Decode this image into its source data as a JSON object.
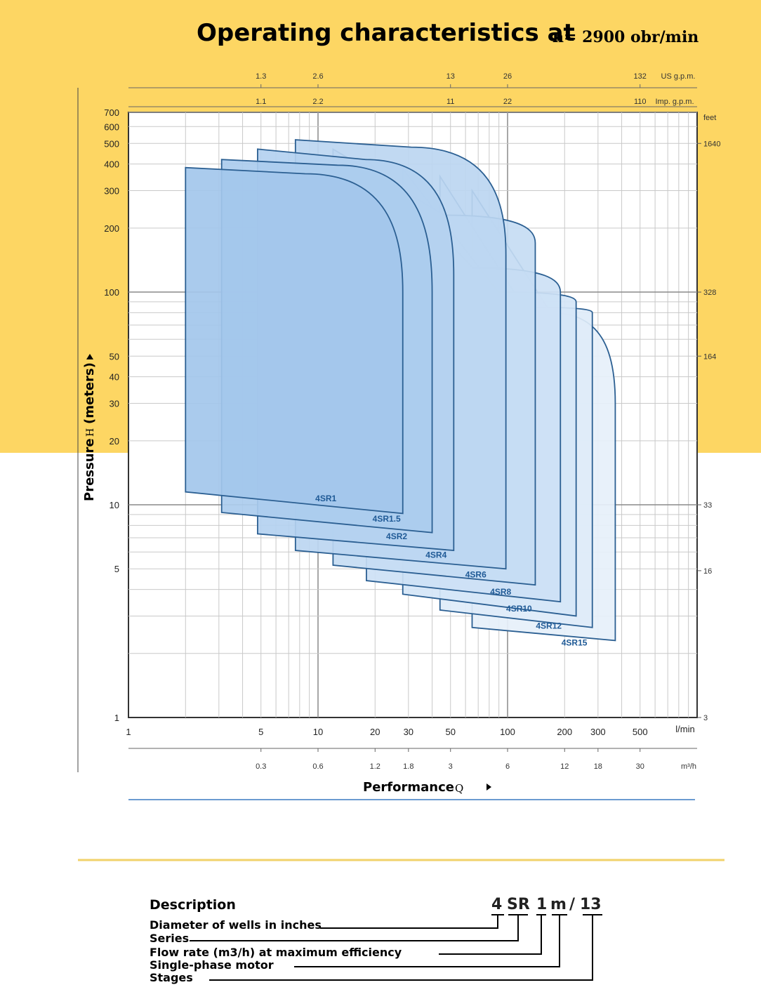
{
  "header": {
    "title": "Operating characteristics at",
    "speed": "n= 2900 obr/min"
  },
  "colors": {
    "background_band": "#fdd663",
    "curve_stroke": "#2b5f92",
    "fill_front": "#a3c7ec",
    "fill_back": "#e6f0fa",
    "label_text": "#1f5a96",
    "bottom_rule": "#6b9bd1",
    "separator_rule": "#f1d26a"
  },
  "chart_data": {
    "type": "area",
    "xscale": "log",
    "yscale": "log",
    "grid": true,
    "xlim": [
      1,
      1000
    ],
    "ylim": [
      1,
      700
    ],
    "xlabel": "Performance",
    "xsymbol": "Q",
    "ylabel": "Pressure",
    "ysymbol": "H",
    "yunit": "(meters)",
    "x_unit": "l/min",
    "x_ticks": [
      "1",
      "5",
      "10",
      "20",
      "30",
      "50",
      "100",
      "200",
      "300",
      "500"
    ],
    "y_ticks": [
      "1",
      "5",
      "10",
      "20",
      "30",
      "40",
      "50",
      "100",
      "200",
      "300",
      "400",
      "500",
      "600",
      "700"
    ],
    "secondary_x_axes": [
      {
        "unit": "m³/h",
        "ticks": [
          {
            "x": 5,
            "label": "0.3"
          },
          {
            "x": 10,
            "label": "0.6"
          },
          {
            "x": 20,
            "label": "1.2"
          },
          {
            "x": 30,
            "label": "1.8"
          },
          {
            "x": 50,
            "label": "3"
          },
          {
            "x": 100,
            "label": "6"
          },
          {
            "x": 200,
            "label": "12"
          },
          {
            "x": 300,
            "label": "18"
          },
          {
            "x": 500,
            "label": "30"
          }
        ]
      },
      {
        "unit": "Imp. g.p.m.",
        "ticks": [
          {
            "x": 5,
            "label": "1.1"
          },
          {
            "x": 10,
            "label": "2.2"
          },
          {
            "x": 50,
            "label": "11"
          },
          {
            "x": 100,
            "label": "22"
          },
          {
            "x": 500,
            "label": "110"
          }
        ]
      },
      {
        "unit": "US g.p.m.",
        "ticks": [
          {
            "x": 5,
            "label": "1.3"
          },
          {
            "x": 10,
            "label": "2.6"
          },
          {
            "x": 50,
            "label": "13"
          },
          {
            "x": 100,
            "label": "26"
          },
          {
            "x": 500,
            "label": "132"
          }
        ]
      }
    ],
    "secondary_y_axis": {
      "unit": "feet",
      "ticks": [
        {
          "y": 1,
          "label": "3"
        },
        {
          "y": 4.9,
          "label": "16"
        },
        {
          "y": 10,
          "label": "33"
        },
        {
          "y": 50,
          "label": "164"
        },
        {
          "y": 100,
          "label": "328"
        },
        {
          "y": 500,
          "label": "1640"
        }
      ]
    },
    "series": [
      {
        "name": "4SR1",
        "q_min": 2.0,
        "q_max": 28,
        "h_min_left": 11.5,
        "h_min_right": 9.1,
        "h_max_left": 385,
        "h_max_right": 360,
        "knee_h": 100,
        "label_q": 11,
        "label_h": 10.7
      },
      {
        "name": "4SR1.5",
        "q_min": 3.1,
        "q_max": 40,
        "h_min_left": 9.2,
        "h_min_right": 7.4,
        "h_max_left": 420,
        "h_max_right": 395,
        "knee_h": 100,
        "label_q": 23,
        "label_h": 8.6
      },
      {
        "name": "4SR2",
        "q_min": 4.8,
        "q_max": 52,
        "h_min_left": 7.3,
        "h_min_right": 6.1,
        "h_max_left": 470,
        "h_max_right": 420,
        "knee_h": 120,
        "label_q": 26,
        "label_h": 7.1
      },
      {
        "name": "4SR4",
        "q_min": 7.6,
        "q_max": 98,
        "h_min_left": 6.1,
        "h_min_right": 5.0,
        "h_max_left": 520,
        "h_max_right": 480,
        "knee_h": 150,
        "label_q": 42,
        "label_h": 5.8
      },
      {
        "name": "4SR6",
        "q_min": 12,
        "q_max": 140,
        "h_min_left": 5.2,
        "h_min_right": 4.2,
        "h_max_left": 470,
        "h_max_right": 230,
        "knee_h": 170,
        "label_q": 68,
        "label_h": 4.7
      },
      {
        "name": "4SR8",
        "q_min": 18,
        "q_max": 190,
        "h_min_left": 4.4,
        "h_min_right": 3.5,
        "h_max_left": 420,
        "h_max_right": 130,
        "knee_h": 100,
        "label_q": 92,
        "label_h": 3.9
      },
      {
        "name": "4SR10",
        "q_min": 28,
        "q_max": 230,
        "h_min_left": 3.8,
        "h_min_right": 3.0,
        "h_max_left": 380,
        "h_max_right": 100,
        "knee_h": 90,
        "label_q": 115,
        "label_h": 3.25
      },
      {
        "name": "4SR12",
        "q_min": 44,
        "q_max": 280,
        "h_min_left": 3.2,
        "h_min_right": 2.65,
        "h_max_left": 350,
        "h_max_right": 85,
        "knee_h": 80,
        "label_q": 165,
        "label_h": 2.7
      },
      {
        "name": "4SR15",
        "q_min": 65,
        "q_max": 370,
        "h_min_left": 2.65,
        "h_min_right": 2.3,
        "h_max_left": 300,
        "h_max_right": 80,
        "knee_h": 30,
        "label_q": 225,
        "label_h": 2.25
      }
    ]
  },
  "description": {
    "title": "Description",
    "code_parts": [
      "4",
      "SR",
      "1",
      "m",
      "/",
      "13"
    ],
    "items": [
      "Diameter of wells in inches",
      "Series",
      "Flow rate (m3/h) at maximum efficiency",
      "Single-phase motor",
      "Stages"
    ]
  }
}
